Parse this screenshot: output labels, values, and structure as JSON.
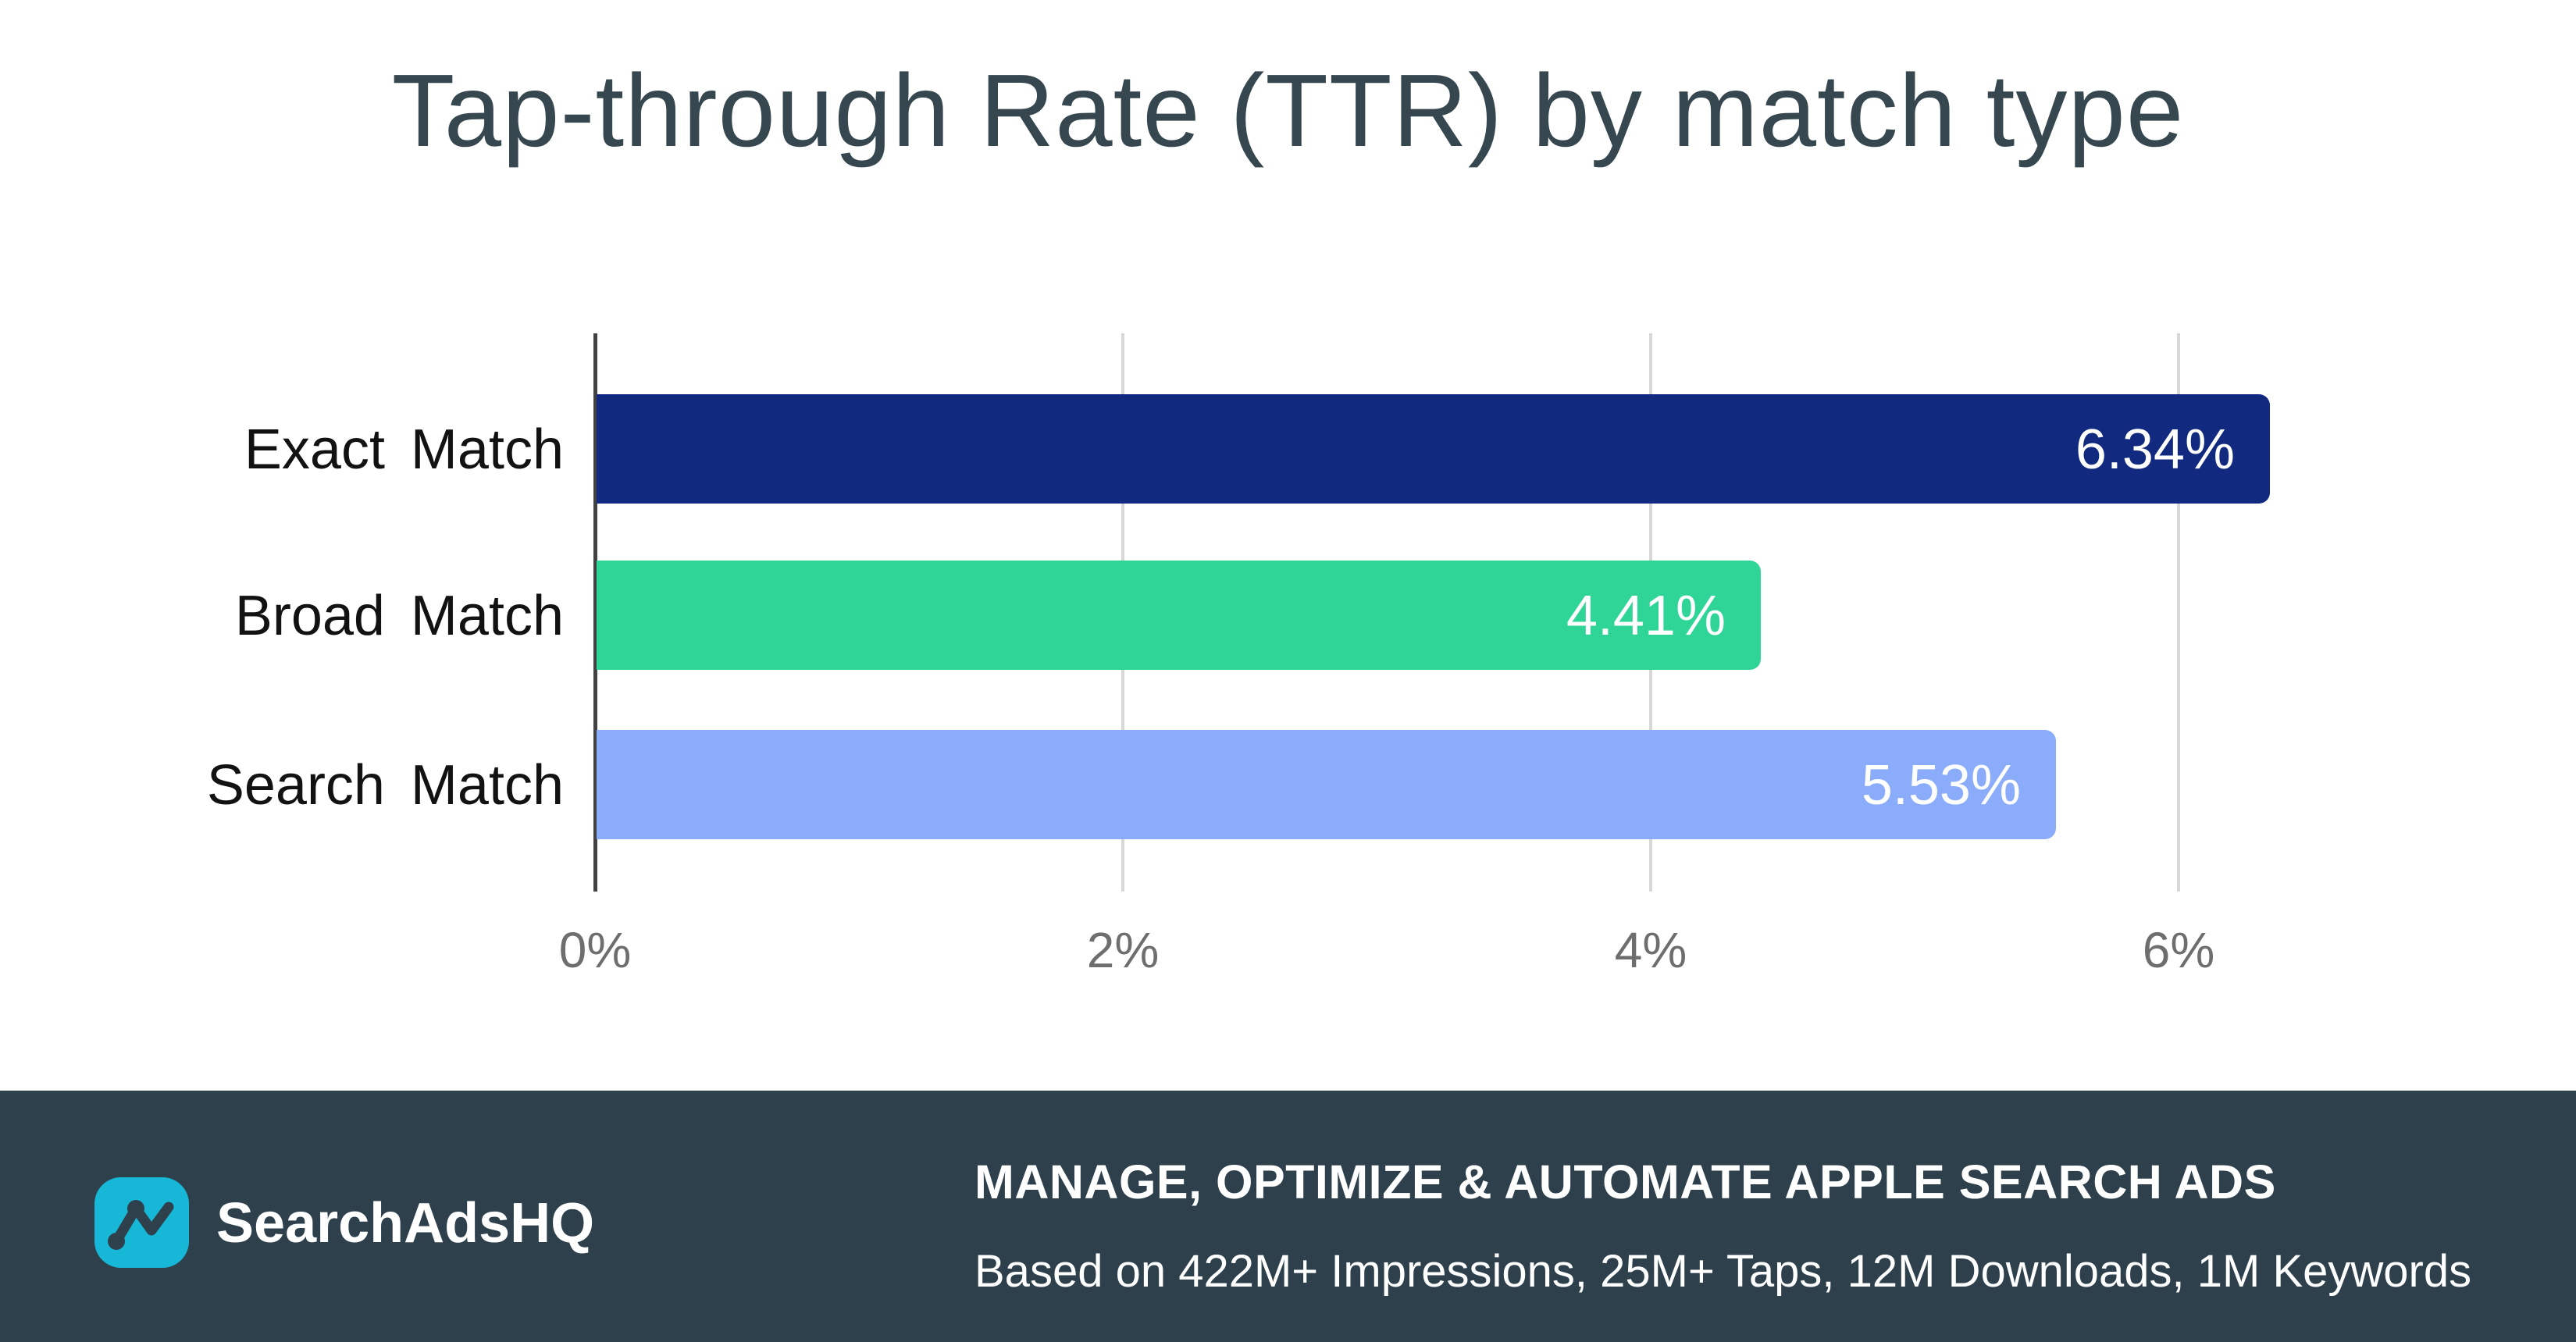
{
  "title": "Tap-through Rate (TTR) by match type",
  "chart_data": {
    "type": "bar",
    "orientation": "horizontal",
    "title": "Tap-through Rate (TTR) by match type",
    "categories": [
      "Exact Match",
      "Broad Match",
      "Search Match"
    ],
    "values": [
      6.34,
      4.41,
      5.53
    ],
    "value_labels": [
      "6.34%",
      "4.41%",
      "5.53%"
    ],
    "bar_colors": [
      "#112A7F",
      "#2ED597",
      "#8AACFA"
    ],
    "x_ticks": [
      "0%",
      "2%",
      "4%",
      "6%"
    ],
    "x_tick_values": [
      0,
      2,
      4,
      6
    ],
    "xlim": [
      0,
      7.2
    ],
    "xlabel": "",
    "ylabel": "",
    "grid": "vertical-gridlines-at-ticks",
    "legend": "none",
    "value_label_position": "inside-end",
    "unit": "percent"
  },
  "footer": {
    "brand": "SearchAdsHQ",
    "heading": "MANAGE, OPTIMIZE & AUTOMATE APPLE SEARCH ADS",
    "subtext": "Based on 422M+ Impressions, 25M+ Taps, 12M Downloads, 1M Keywords"
  },
  "colors": {
    "title_text": "#37474F",
    "axis_line": "#424242",
    "gridline": "#D8D8D8",
    "tick_text": "#6E6E6E",
    "category_text": "#121212",
    "bar_value_text": "#FFFFFF",
    "footer_background": "#2F404D",
    "footer_text": "#FFFFFF",
    "logo_background": "#17B8D7"
  }
}
